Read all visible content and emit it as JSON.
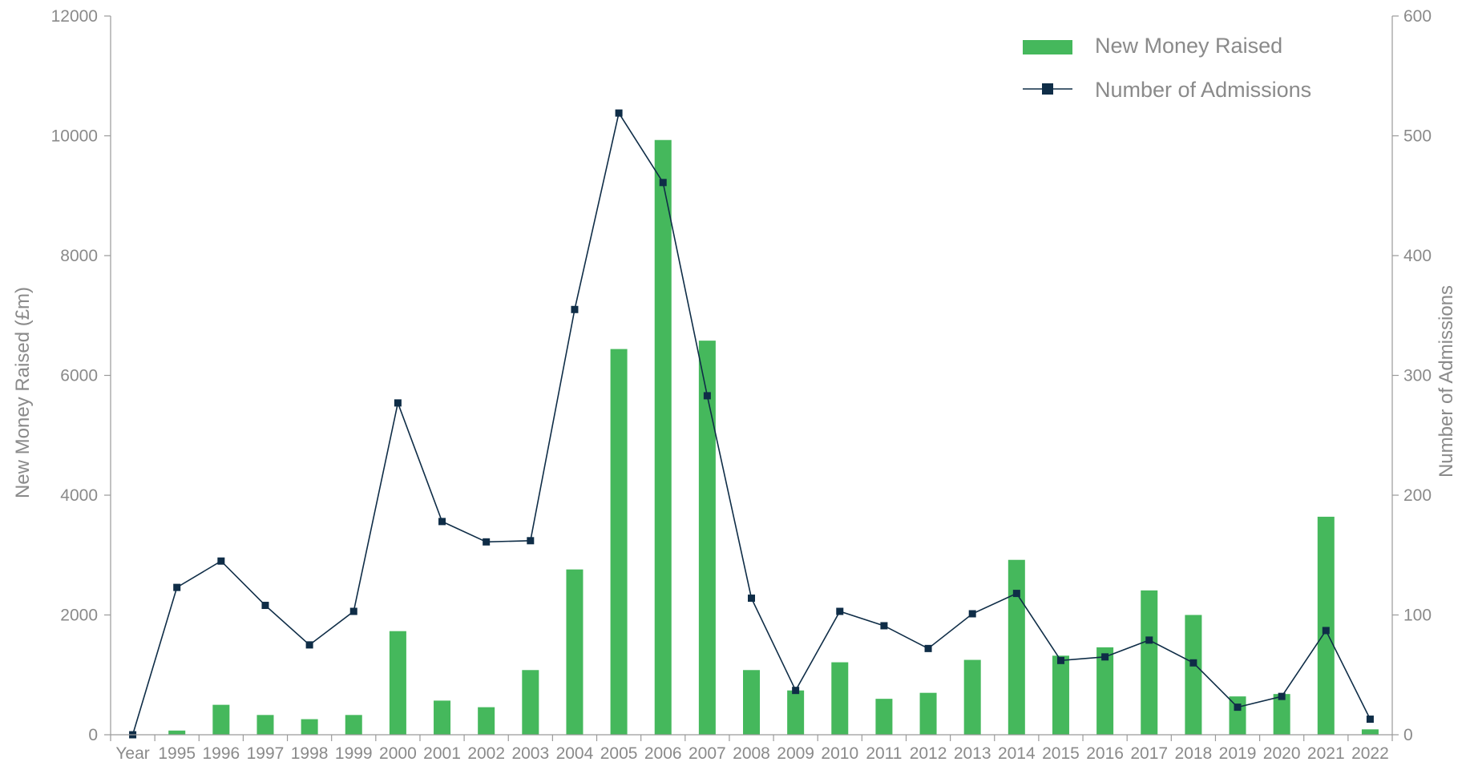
{
  "chart_data": {
    "type": "bar",
    "categories": [
      "Year",
      "1995",
      "1996",
      "1997",
      "1998",
      "1999",
      "2000",
      "2001",
      "2002",
      "2003",
      "2004",
      "2005",
      "2006",
      "2007",
      "2008",
      "2009",
      "2010",
      "2011",
      "2012",
      "2013",
      "2014",
      "2015",
      "2016",
      "2017",
      "2018",
      "2019",
      "2020",
      "2021",
      "2022"
    ],
    "series": [
      {
        "name": "New Money Raised",
        "type": "bar",
        "axis": "left",
        "color": "#45b85c",
        "values": [
          0,
          70,
          500,
          330,
          260,
          330,
          1730,
          570,
          460,
          1080,
          2760,
          6440,
          9930,
          6580,
          1080,
          740,
          1210,
          600,
          700,
          1250,
          2920,
          1320,
          1460,
          2410,
          2000,
          640,
          680,
          3640,
          90
        ]
      },
      {
        "name": "Number of Admissions",
        "type": "line",
        "axis": "right",
        "color": "#0f2d47",
        "values": [
          0,
          123,
          145,
          108,
          75,
          103,
          277,
          178,
          161,
          162,
          355,
          519,
          461,
          283,
          114,
          37,
          103,
          91,
          72,
          101,
          118,
          62,
          65,
          79,
          60,
          23,
          32,
          87,
          13
        ]
      }
    ],
    "ylabel": "New Money Raised (£m)",
    "ylabel_right": "Number of Admissions",
    "xlabel": "",
    "ylim": [
      0,
      12000
    ],
    "ylim_right": [
      0,
      600
    ],
    "yticks": [
      "0",
      "2000",
      "4000",
      "6000",
      "8000",
      "10000",
      "12000"
    ],
    "yticks_right": [
      "0",
      "100",
      "200",
      "300",
      "400",
      "500",
      "600"
    ],
    "legend_position": "top-right",
    "grid": false,
    "axis_color": "#9a9a9a",
    "text_color": "#8a8a8a"
  }
}
